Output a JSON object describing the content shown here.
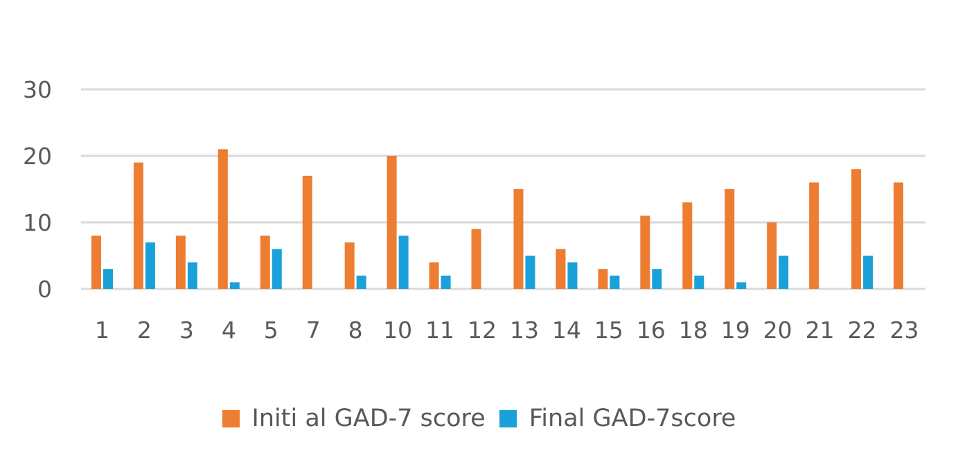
{
  "chart_data": {
    "type": "bar",
    "categories": [
      "1",
      "2",
      "3",
      "4",
      "5",
      "7",
      "8",
      "10",
      "11",
      "12",
      "13",
      "14",
      "15",
      "16",
      "18",
      "19",
      "20",
      "21",
      "22",
      "23"
    ],
    "series": [
      {
        "name": "Initi al GAD-7 score",
        "color": "#ED7D31",
        "values": [
          8,
          19,
          8,
          21,
          8,
          17,
          7,
          20,
          4,
          9,
          15,
          6,
          3,
          11,
          13,
          15,
          10,
          16,
          18,
          16
        ]
      },
      {
        "name": "Final GAD-7score",
        "color": "#1BA1D9",
        "values": [
          3,
          7,
          4,
          1,
          6,
          0,
          2,
          8,
          2,
          0,
          5,
          4,
          2,
          3,
          2,
          1,
          5,
          0,
          5,
          0
        ]
      }
    ],
    "yticks": [
      "0",
      "10",
      "20",
      "30"
    ],
    "ylim": [
      0,
      30
    ],
    "grid": true,
    "legend_position": "bottom",
    "title": "",
    "xlabel": "",
    "ylabel": ""
  }
}
